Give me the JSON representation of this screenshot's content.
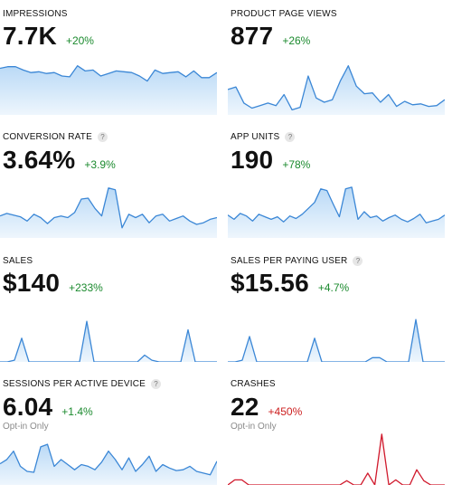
{
  "colors": {
    "blue_line": "#3b87d6",
    "blue_fill_top": "#b9d9f6",
    "blue_fill_bottom": "#eef6fd",
    "red_line": "#d0192c",
    "red_fill": "#fbe6e8"
  },
  "metrics": [
    {
      "title": "IMPRESSIONS",
      "value": "7.7K",
      "change": "+20%",
      "change_status": "positive",
      "help": "",
      "note": "",
      "color": "blue",
      "series": [
        55,
        57,
        57,
        53,
        50,
        51,
        49,
        50,
        46,
        45,
        58,
        52,
        53,
        46,
        49,
        52,
        51,
        50,
        46,
        40,
        53,
        49,
        50,
        51,
        45,
        52,
        44,
        44,
        50
      ]
    },
    {
      "title": "PRODUCT PAGE VIEWS",
      "value": "877",
      "change": "+26%",
      "change_status": "positive",
      "help": "",
      "note": "",
      "color": "blue",
      "series": [
        30,
        33,
        14,
        8,
        11,
        14,
        11,
        24,
        6,
        9,
        46,
        20,
        15,
        18,
        40,
        58,
        34,
        25,
        26,
        15,
        24,
        10,
        16,
        12,
        13,
        10,
        11,
        18
      ]
    },
    {
      "title": "CONVERSION RATE",
      "value": "3.64%",
      "change": "+3.9%",
      "change_status": "positive",
      "help": "?",
      "note": "",
      "color": "blue",
      "series": [
        26,
        29,
        27,
        25,
        20,
        28,
        24,
        17,
        24,
        26,
        24,
        30,
        46,
        47,
        35,
        26,
        59,
        57,
        12,
        28,
        24,
        28,
        18,
        26,
        28,
        20,
        23,
        26,
        20,
        16,
        18,
        22,
        24
      ]
    },
    {
      "title": "APP UNITS",
      "value": "190",
      "change": "+78%",
      "change_status": "positive",
      "help": "?",
      "note": "",
      "color": "blue",
      "series": [
        27,
        22,
        29,
        26,
        20,
        28,
        25,
        22,
        25,
        19,
        26,
        23,
        28,
        35,
        42,
        58,
        56,
        40,
        25,
        58,
        60,
        22,
        31,
        24,
        26,
        20,
        24,
        27,
        22,
        19,
        23,
        28,
        18,
        20,
        22,
        27
      ]
    },
    {
      "title": "SALES",
      "value": "$140",
      "change": "+233%",
      "change_status": "positive",
      "help": "",
      "note": "",
      "color": "blue",
      "series": [
        0,
        0,
        2,
        28,
        0,
        0,
        0,
        0,
        0,
        0,
        0,
        0,
        48,
        0,
        0,
        0,
        0,
        0,
        0,
        0,
        8,
        2,
        0,
        0,
        0,
        0,
        38,
        0,
        0,
        0,
        0
      ]
    },
    {
      "title": "SALES PER PAYING USER",
      "value": "$15.56",
      "change": "+4.7%",
      "change_status": "positive",
      "help": "?",
      "note": "",
      "color": "blue",
      "series": [
        0,
        0,
        2,
        30,
        0,
        0,
        0,
        0,
        0,
        0,
        0,
        0,
        28,
        0,
        0,
        0,
        0,
        0,
        0,
        0,
        5,
        5,
        0,
        0,
        0,
        0,
        50,
        0,
        0,
        0,
        0
      ]
    },
    {
      "title": "SESSIONS PER ACTIVE DEVICE",
      "value": "6.04",
      "change": "+1.4%",
      "change_status": "positive",
      "help": "?",
      "note": "Opt-in Only",
      "color": "blue",
      "series": [
        25,
        30,
        40,
        22,
        16,
        15,
        45,
        48,
        22,
        30,
        24,
        18,
        24,
        22,
        18,
        27,
        40,
        30,
        18,
        32,
        16,
        24,
        34,
        16,
        24,
        20,
        17,
        18,
        22,
        16,
        14,
        12,
        28
      ]
    },
    {
      "title": "CRASHES",
      "value": "22",
      "change": "+450%",
      "change_status": "negative",
      "help": "",
      "note": "Opt-in Only",
      "color": "red",
      "series": [
        0,
        6,
        6,
        0,
        0,
        0,
        0,
        0,
        0,
        0,
        0,
        0,
        0,
        0,
        0,
        0,
        0,
        5,
        0,
        0,
        14,
        0,
        60,
        0,
        6,
        0,
        0,
        18,
        5,
        0,
        0,
        0
      ]
    }
  ]
}
